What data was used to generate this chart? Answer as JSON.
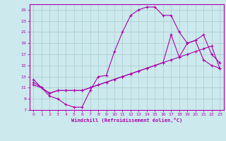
{
  "xlabel": "Windchill (Refroidissement éolien,°C)",
  "background_color": "#cce9ed",
  "grid_color": "#aacccc",
  "line_color": "#aa00aa",
  "xlim": [
    -0.5,
    23.5
  ],
  "ylim": [
    7,
    26
  ],
  "xticks": [
    0,
    1,
    2,
    3,
    4,
    5,
    6,
    7,
    8,
    9,
    10,
    11,
    12,
    13,
    14,
    15,
    16,
    17,
    18,
    19,
    20,
    21,
    22,
    23
  ],
  "yticks": [
    7,
    9,
    11,
    13,
    15,
    17,
    19,
    21,
    23,
    25
  ],
  "line1_x": [
    0,
    1,
    2,
    3,
    4,
    5,
    6,
    7,
    8,
    9,
    10,
    11,
    12,
    13,
    14,
    15,
    16,
    17,
    18,
    19,
    20,
    21,
    22,
    23
  ],
  "line1_y": [
    12.5,
    11.0,
    9.5,
    9.0,
    8.0,
    7.5,
    7.5,
    10.5,
    13.0,
    13.2,
    17.5,
    21.0,
    24.0,
    25.0,
    25.5,
    25.5,
    24.0,
    24.0,
    21.0,
    19.0,
    19.5,
    16.0,
    15.0,
    14.5
  ],
  "line2_x": [
    0,
    1,
    2,
    3,
    4,
    5,
    6,
    7,
    8,
    9,
    10,
    11,
    12,
    13,
    14,
    15,
    16,
    17,
    18,
    19,
    20,
    21,
    22,
    23
  ],
  "line2_y": [
    12.0,
    11.0,
    10.0,
    10.5,
    10.5,
    10.5,
    10.5,
    11.0,
    11.5,
    12.0,
    12.5,
    13.0,
    13.5,
    14.0,
    14.5,
    15.0,
    15.5,
    16.0,
    16.5,
    17.0,
    17.5,
    18.0,
    18.5,
    14.5
  ],
  "line3_x": [
    0,
    1,
    2,
    3,
    4,
    5,
    6,
    7,
    8,
    9,
    10,
    11,
    12,
    13,
    14,
    15,
    16,
    17,
    18,
    19,
    20,
    21,
    22,
    23
  ],
  "line3_y": [
    11.5,
    11.0,
    10.0,
    10.5,
    10.5,
    10.5,
    10.5,
    11.0,
    11.5,
    12.0,
    12.5,
    13.0,
    13.5,
    14.0,
    14.5,
    15.0,
    15.5,
    20.5,
    16.5,
    19.0,
    19.5,
    20.5,
    17.0,
    15.5
  ]
}
